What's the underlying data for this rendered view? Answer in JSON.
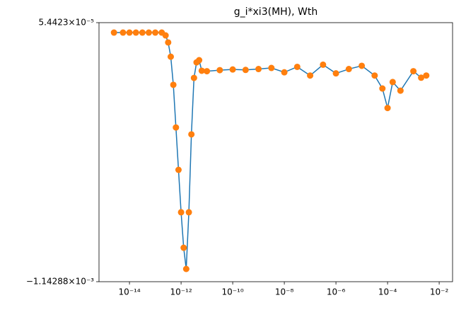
{
  "chart_data": {
    "type": "line",
    "title": "g_i*xi3(MH), Wth",
    "x": [
      2.51e-15,
      5.62e-15,
      1e-14,
      1.78e-14,
      3.16e-14,
      5.62e-14,
      1e-13,
      1.78e-13,
      2.51e-13,
      3.16e-13,
      3.98e-13,
      5.01e-13,
      6.31e-13,
      7.94e-13,
      1e-12,
      1.26e-12,
      1.58e-12,
      2e-12,
      2.51e-12,
      3.16e-12,
      3.98e-12,
      5.01e-12,
      6.31e-12,
      1e-11,
      3.16e-11,
      1e-10,
      3.16e-10,
      1e-09,
      3.16e-09,
      1e-08,
      3.16e-08,
      1e-07,
      3.16e-07,
      1e-06,
      3.16e-06,
      1e-05,
      3.16e-05,
      6.31e-05,
      0.0001,
      0.000158,
      0.000316,
      0.001,
      0.002,
      0.00316
    ],
    "series": [
      {
        "line_color": "#1f77b4",
        "color": "#ff7f0e",
        "values": [
          8.6e-06,
          8.6e-06,
          8.6e-06,
          8.6e-06,
          8.6e-06,
          8.6e-06,
          8.6e-06,
          8.6e-06,
          -4.5e-06,
          -3.7e-05,
          -0.000103,
          -0.000233,
          -0.00043,
          -0.000626,
          -0.000822,
          -0.000986,
          -0.001084,
          -0.000822,
          -0.000462,
          -0.000201,
          -0.000129,
          -0.000119,
          -0.000168,
          -0.00017,
          -0.000165,
          -0.000162,
          -0.000164,
          -0.00016,
          -0.000155,
          -0.000175,
          -0.00015,
          -0.00019,
          -0.00014,
          -0.00018,
          -0.00016,
          -0.000145,
          -0.00019,
          -0.00025,
          -0.00034,
          -0.00022,
          -0.00026,
          -0.00017,
          -0.0002,
          -0.00019
        ]
      }
    ],
    "log_x": true,
    "xlim": [
      6.6e-16,
      0.033
    ],
    "xticks": [
      {
        "value": 1e-14,
        "label": "10⁻¹⁴"
      },
      {
        "value": 1e-12,
        "label": "10⁻¹²"
      },
      {
        "value": 1e-10,
        "label": "10⁻¹⁰"
      },
      {
        "value": 1e-08,
        "label": "10⁻⁸"
      },
      {
        "value": 1e-06,
        "label": "10⁻⁶"
      },
      {
        "value": 0.0001,
        "label": "10⁻⁴"
      },
      {
        "value": 0.01,
        "label": "10⁻²"
      }
    ],
    "ylim": [
      -0.00114288,
      5.4423e-05
    ],
    "yticks": [
      {
        "value": -0.00114288,
        "label": "−1.14288×10⁻³"
      },
      {
        "value": 5.4423e-05,
        "label": "5.4423×10⁻⁵"
      }
    ]
  }
}
